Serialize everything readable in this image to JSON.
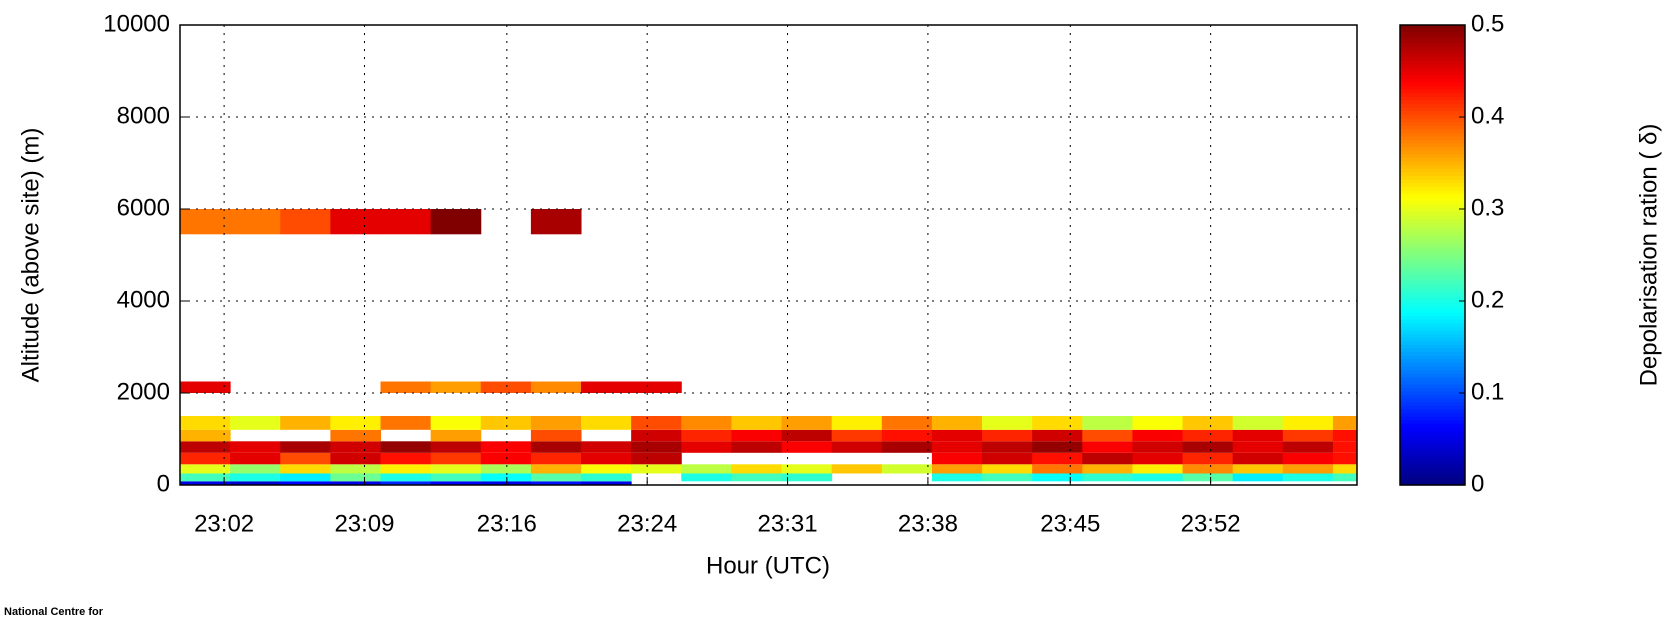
{
  "chart_data": {
    "type": "heatmap",
    "x_label": "Hour (UTC)",
    "y_label": "Altitude (above site) (m)",
    "colorbar_label": "Depolarisation ration ( δ)",
    "footer": "National Centre for",
    "colormap": "jet",
    "grid": true,
    "xlim": [
      0,
      58.7
    ],
    "xticks": [
      {
        "value": 2.2,
        "label": "23:02"
      },
      {
        "value": 9.2,
        "label": "23:09"
      },
      {
        "value": 16.3,
        "label": "23:16"
      },
      {
        "value": 23.3,
        "label": "23:24"
      },
      {
        "value": 30.3,
        "label": "23:31"
      },
      {
        "value": 37.3,
        "label": "23:38"
      },
      {
        "value": 44.4,
        "label": "23:45"
      },
      {
        "value": 51.4,
        "label": "23:52"
      }
    ],
    "ylim": [
      0,
      10000
    ],
    "yticks": [
      0,
      2000,
      4000,
      6000,
      8000,
      10000
    ],
    "clim": [
      0,
      0.5
    ],
    "cticks": [
      0,
      0.1,
      0.2,
      0.3,
      0.4,
      0.5
    ],
    "x_edges": [
      0,
      2.5,
      5,
      7.5,
      10,
      12.5,
      15,
      17.5,
      20,
      22.5,
      25,
      27.5,
      30,
      32.5,
      35,
      37.5,
      40,
      42.5,
      45,
      47.5,
      50,
      52.5,
      55,
      57.5,
      58.7
    ],
    "y_edges": [
      0,
      80,
      250,
      450,
      700,
      950,
      1200,
      1500,
      2000,
      2250,
      5450,
      6000
    ],
    "z": [
      [
        0.05,
        0.04,
        0.06,
        0.05,
        0.08,
        0.06,
        0.05,
        0.07,
        0.05,
        null,
        null,
        null,
        null,
        null,
        null,
        null,
        null,
        null,
        null,
        null,
        null,
        null,
        null,
        null
      ],
      [
        0.22,
        0.2,
        0.18,
        0.24,
        0.2,
        0.22,
        0.19,
        0.23,
        0.21,
        null,
        0.2,
        0.22,
        0.21,
        null,
        null,
        0.2,
        0.22,
        0.19,
        0.21,
        0.2,
        0.23,
        0.18,
        0.2,
        0.22
      ],
      [
        0.3,
        0.26,
        0.33,
        0.28,
        0.32,
        0.3,
        0.27,
        0.35,
        0.31,
        0.3,
        0.28,
        0.33,
        0.3,
        0.34,
        0.29,
        0.36,
        0.33,
        0.38,
        0.35,
        0.32,
        0.37,
        0.34,
        0.36,
        0.33
      ],
      [
        0.42,
        0.45,
        0.4,
        0.46,
        0.43,
        0.41,
        0.44,
        0.42,
        0.45,
        0.47,
        null,
        null,
        null,
        null,
        null,
        0.44,
        0.46,
        0.43,
        0.47,
        0.45,
        0.42,
        0.46,
        0.44,
        0.43
      ],
      [
        0.47,
        0.45,
        0.48,
        0.46,
        0.49,
        0.47,
        0.44,
        0.48,
        0.46,
        0.48,
        0.45,
        0.47,
        0.44,
        0.46,
        0.48,
        0.45,
        0.47,
        0.49,
        0.44,
        0.46,
        0.48,
        0.45,
        0.47,
        0.43
      ],
      [
        0.35,
        null,
        null,
        0.38,
        null,
        0.36,
        null,
        0.4,
        null,
        0.46,
        0.42,
        0.44,
        0.47,
        0.41,
        0.43,
        0.45,
        0.42,
        0.46,
        0.4,
        0.44,
        0.42,
        0.45,
        0.41,
        0.43
      ],
      [
        0.33,
        0.3,
        0.35,
        0.32,
        0.38,
        0.31,
        0.34,
        0.36,
        0.33,
        0.4,
        0.37,
        0.34,
        0.36,
        0.32,
        0.38,
        0.35,
        0.3,
        0.33,
        0.28,
        0.31,
        0.34,
        0.29,
        0.32,
        0.36
      ],
      [
        null,
        null,
        null,
        null,
        null,
        null,
        null,
        null,
        null,
        null,
        null,
        null,
        null,
        null,
        null,
        null,
        null,
        null,
        null,
        null,
        null,
        null,
        null,
        null
      ],
      [
        0.45,
        null,
        null,
        null,
        0.38,
        0.36,
        0.4,
        0.37,
        0.45,
        0.45,
        null,
        null,
        null,
        null,
        null,
        null,
        null,
        null,
        null,
        null,
        null,
        null,
        null,
        null
      ],
      [
        null,
        null,
        null,
        null,
        null,
        null,
        null,
        null,
        null,
        null,
        null,
        null,
        null,
        null,
        null,
        null,
        null,
        null,
        null,
        null,
        null,
        null,
        null,
        null
      ],
      [
        0.38,
        0.38,
        0.4,
        0.45,
        0.45,
        0.5,
        null,
        0.48,
        null,
        null,
        null,
        null,
        null,
        null,
        null,
        null,
        null,
        null,
        null,
        null,
        null,
        null,
        null,
        null
      ]
    ]
  }
}
